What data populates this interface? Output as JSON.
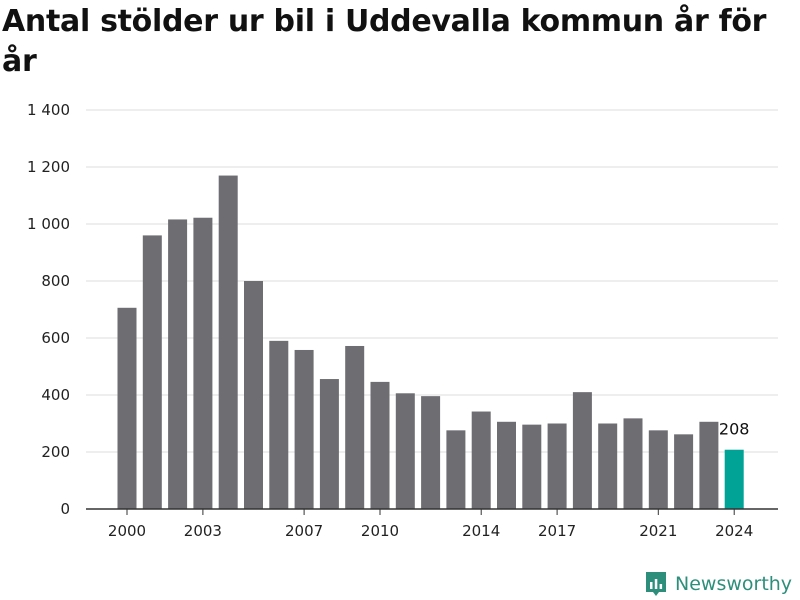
{
  "chart_data": {
    "type": "bar",
    "title": "Antal stölder ur bil i Uddevalla kommun år för år",
    "categories": [
      "2000",
      "2001",
      "2002",
      "2003",
      "2004",
      "2005",
      "2006",
      "2007",
      "2008",
      "2009",
      "2010",
      "2011",
      "2012",
      "2013",
      "2014",
      "2015",
      "2016",
      "2017",
      "2018",
      "2019",
      "2020",
      "2021",
      "2022",
      "2023",
      "2024"
    ],
    "values": [
      706,
      960,
      1016,
      1022,
      1170,
      800,
      590,
      558,
      456,
      572,
      446,
      406,
      396,
      276,
      342,
      306,
      296,
      300,
      410,
      300,
      318,
      276,
      262,
      306,
      208
    ],
    "x_tick_labels": [
      "2000",
      "2003",
      "2007",
      "2010",
      "2014",
      "2017",
      "2021",
      "2024"
    ],
    "y_ticks": [
      0,
      200,
      400,
      600,
      800,
      1000,
      1200,
      1400
    ],
    "y_tick_labels": [
      "0",
      "200",
      "400",
      "600",
      "800",
      "1 000",
      "1 200",
      "1 400"
    ],
    "ylim": [
      0,
      1400
    ],
    "grid": true,
    "highlight": {
      "category": "2024",
      "label": "208"
    },
    "colors": {
      "bar": "#6e6d72",
      "highlight": "#00a396",
      "grid": "#dcdcdc",
      "axis": "#333333"
    }
  },
  "branding": {
    "name": "Newsworthy",
    "color": "#2d8f7b"
  }
}
